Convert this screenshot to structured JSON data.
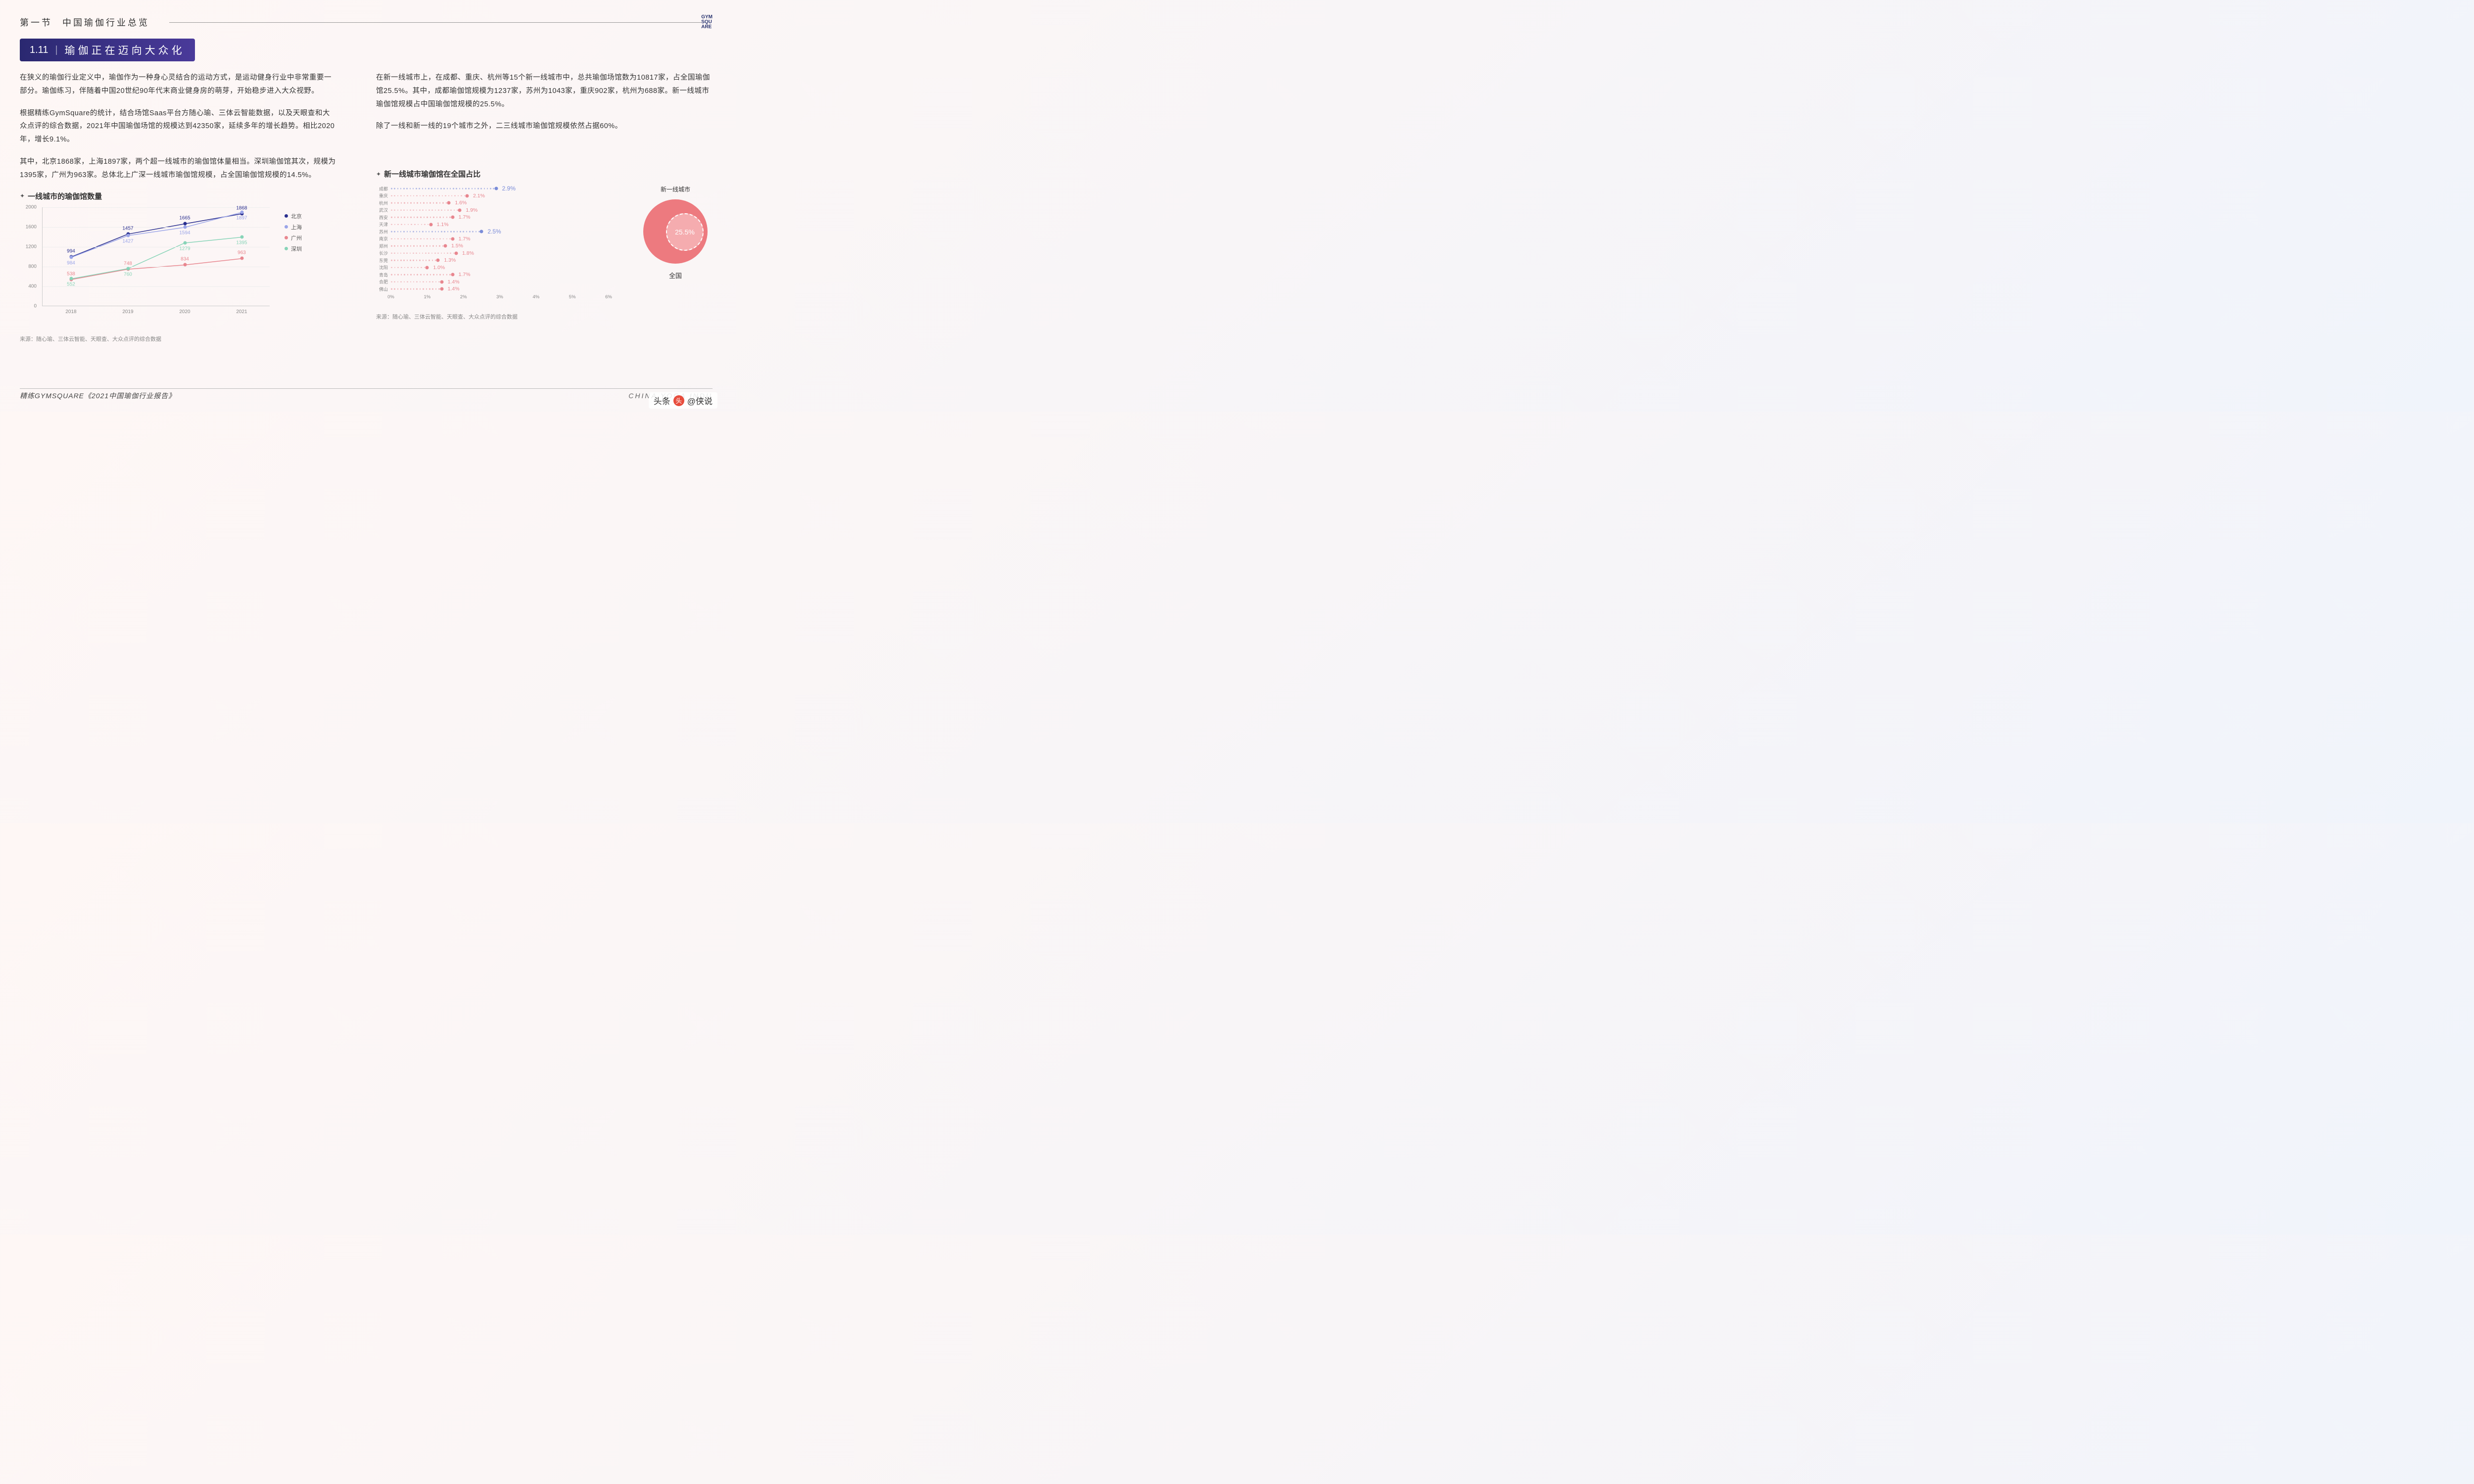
{
  "header": {
    "section": "第一节",
    "title": "中国瑜伽行业总览",
    "logo_l1": "GYM",
    "logo_l2": "SQU",
    "logo_l3": "ARE"
  },
  "badge": {
    "num": "1.11",
    "text": "瑜伽正在迈向大众化"
  },
  "left": {
    "p1": "在狭义的瑜伽行业定义中，瑜伽作为一种身心灵结合的运动方式，是运动健身行业中非常重要一部分。瑜伽练习，伴随着中国20世纪90年代末商业健身房的萌芽，开始稳步进入大众视野。",
    "p2": "根据精练GymSquare的统计，结合场馆Saas平台方随心瑜、三体云智能数据，以及天眼查和大众点评的综合数据，2021年中国瑜伽场馆的规模达到42350家，延续多年的增长趋势。相比2020年，增长9.1%。",
    "p3": "其中，北京1868家，上海1897家，两个超一线城市的瑜伽馆体量相当。深圳瑜伽馆其次，规模为1395家，广州为963家。总体北上广深一线城市瑜伽馆规模，占全国瑜伽馆规模的14.5%。"
  },
  "right": {
    "p1": "在新一线城市上，在成都、重庆、杭州等15个新一线城市中，总共瑜伽场馆数为10817家，占全国瑜伽馆25.5%。其中，成都瑜伽馆规模为1237家，苏州为1043家，重庆902家，杭州为688家。新一线城市瑜伽馆规模占中国瑜伽馆规模的25.5%。",
    "p2": "除了一线和新一线的19个城市之外，二三线城市瑜伽馆规模依然占据60%。"
  },
  "line_chart": {
    "title": "一线城市的瑜伽馆数量",
    "ylim": [
      0,
      2000
    ],
    "ytick_step": 400,
    "x_categories": [
      "2018",
      "2019",
      "2020",
      "2021"
    ],
    "series": [
      {
        "name": "北京",
        "color": "#2a2f8f",
        "values": [
          994,
          1457,
          1665,
          1868
        ],
        "label_pos": "above"
      },
      {
        "name": "上海",
        "color": "#9aa4e8",
        "values": [
          984,
          1427,
          1594,
          1897
        ],
        "label_pos": "below"
      },
      {
        "name": "广州",
        "color": "#e8868f",
        "values": [
          538,
          748,
          834,
          963
        ],
        "label_pos": "above"
      },
      {
        "name": "深圳",
        "color": "#88d4b8",
        "values": [
          552,
          760,
          1279,
          1395
        ],
        "label_pos": "below"
      }
    ],
    "source": "来源：随心瑜、三体云智能、天眼查、大众点评的综合数据"
  },
  "dot_chart": {
    "title": "新一线城市瑜伽馆在全国占比",
    "xmax": 6,
    "cities": [
      {
        "name": "成都",
        "pct": 2.9,
        "label": "2.9%",
        "color": "#7a8cd8",
        "highlight": true
      },
      {
        "name": "重庆",
        "pct": 2.1,
        "label": "2.1%",
        "color": "#e8868f"
      },
      {
        "name": "杭州",
        "pct": 1.6,
        "label": "1.6%",
        "color": "#e8868f"
      },
      {
        "name": "武汉",
        "pct": 1.9,
        "label": "1.9%",
        "color": "#e8868f"
      },
      {
        "name": "西安",
        "pct": 1.7,
        "label": "1.7%",
        "color": "#e8868f"
      },
      {
        "name": "天津",
        "pct": 1.1,
        "label": "1.1%",
        "color": "#e8868f"
      },
      {
        "name": "苏州",
        "pct": 2.5,
        "label": "2.5%",
        "color": "#7a8cd8",
        "highlight": true
      },
      {
        "name": "南京",
        "pct": 1.7,
        "label": "1.7%",
        "color": "#e8868f"
      },
      {
        "name": "郑州",
        "pct": 1.5,
        "label": "1.5%",
        "color": "#e8868f"
      },
      {
        "name": "长沙",
        "pct": 1.8,
        "label": "1.8%",
        "color": "#e8868f"
      },
      {
        "name": "东莞",
        "pct": 1.3,
        "label": "1.3%",
        "color": "#e8868f"
      },
      {
        "name": "沈阳",
        "pct": 1.0,
        "label": "1.0%",
        "color": "#e8868f"
      },
      {
        "name": "青岛",
        "pct": 1.7,
        "label": "1.7%",
        "color": "#e8868f"
      },
      {
        "name": "合肥",
        "pct": 1.4,
        "label": "1.4%",
        "color": "#e8868f"
      },
      {
        "name": "佛山",
        "pct": 1.4,
        "label": "1.4%",
        "color": "#e8868f"
      }
    ],
    "x_ticks": [
      "0%",
      "1%",
      "2%",
      "3%",
      "4%",
      "5%",
      "6%"
    ],
    "source": "来源：随心瑜、三体云智能、天眼查、大众点评的综合数据"
  },
  "pie": {
    "top": "新一线城市",
    "value": "25.5%",
    "bottom": "全国",
    "outer_color": "#ed7a7f",
    "inner_color": "#f5acaf"
  },
  "footer": {
    "left": "精练GYMSQUARE《2021中国瑜伽行业报告》",
    "right": "CHINA YOGA INDU"
  },
  "watermark": {
    "prefix": "头条",
    "suffix": "@侠说"
  }
}
